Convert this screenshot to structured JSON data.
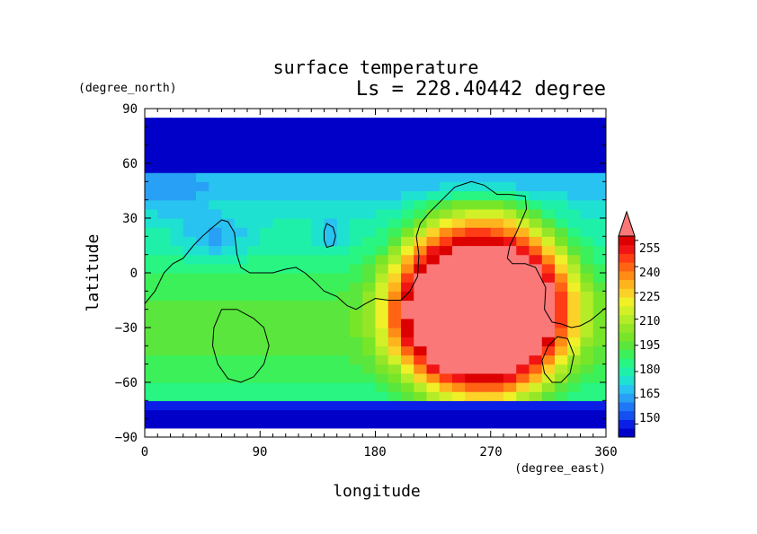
{
  "chart_data": {
    "type": "heatmap",
    "title": "surface temperature",
    "subtitle": "Ls = 228.40442 degree",
    "xlabel": "longitude",
    "ylabel": "latitude",
    "x_unit": "(degree_east)",
    "y_unit": "(degree_north)",
    "xlim": [
      0,
      360
    ],
    "ylim": [
      -90,
      90
    ],
    "x_ticks": [
      "0",
      "90",
      "180",
      "270",
      "360"
    ],
    "y_ticks": [
      "90",
      "60",
      "30",
      "0",
      "−30",
      "−60",
      "−90"
    ],
    "colorbar_ticks": [
      "255",
      "240",
      "225",
      "210",
      "195",
      "180",
      "165",
      "150"
    ],
    "grid": false,
    "colorbar": {
      "levels": [
        145,
        150,
        155,
        160,
        165,
        170,
        175,
        180,
        185,
        190,
        195,
        200,
        205,
        210,
        215,
        220,
        225,
        230,
        235,
        240,
        245,
        250,
        255,
        260
      ],
      "colors": [
        "#0000c8",
        "#0a1ee6",
        "#1450f0",
        "#1e78f5",
        "#28a0f5",
        "#28c3f0",
        "#1ee1d2",
        "#1ef0aa",
        "#28f582",
        "#3cf05a",
        "#5ae63c",
        "#78e628",
        "#96e628",
        "#b4ec28",
        "#d2f028",
        "#f0f028",
        "#fad228",
        "#ffb41e",
        "#ff8c14",
        "#ff6414",
        "#ff3c14",
        "#f01414",
        "#dc0000",
        "#fa7878"
      ],
      "overflow_color": "#fa7878"
    },
    "grid_lon_step": 10,
    "grid_lat_step": 5,
    "lat_range_plotted": [
      -85,
      85
    ],
    "features": [
      {
        "name": "polar cap north",
        "temp": 147
      },
      {
        "name": "polar cap south",
        "temp": 147
      },
      {
        "name": "subsolar warm region center lon",
        "value": 260
      },
      {
        "name": "subsolar warm region center lat",
        "value": -15
      }
    ],
    "coastline": [
      [
        [
          0,
          -17
        ],
        [
          8,
          -10
        ],
        [
          15,
          0
        ],
        [
          22,
          5
        ],
        [
          30,
          8
        ],
        [
          38,
          15
        ],
        [
          45,
          20
        ],
        [
          53,
          25
        ],
        [
          60,
          29
        ],
        [
          65,
          28
        ],
        [
          70,
          22
        ],
        [
          72,
          10
        ],
        [
          75,
          3
        ],
        [
          82,
          0
        ],
        [
          100,
          0
        ],
        [
          110,
          2
        ],
        [
          118,
          3
        ],
        [
          125,
          0
        ],
        [
          133,
          -5
        ],
        [
          140,
          -10
        ],
        [
          150,
          -13
        ],
        [
          158,
          -18
        ],
        [
          165,
          -20
        ],
        [
          172,
          -17
        ],
        [
          180,
          -14
        ],
        [
          190,
          -15
        ],
        [
          200,
          -15
        ],
        [
          207,
          -10
        ],
        [
          213,
          -2
        ],
        [
          214,
          10
        ],
        [
          212,
          20
        ],
        [
          215,
          27
        ],
        [
          222,
          33
        ],
        [
          232,
          40
        ],
        [
          242,
          47
        ],
        [
          255,
          50
        ],
        [
          265,
          48
        ],
        [
          275,
          43
        ],
        [
          285,
          43
        ],
        [
          297,
          42
        ],
        [
          298,
          35
        ],
        [
          290,
          22
        ],
        [
          285,
          15
        ],
        [
          283,
          8
        ],
        [
          287,
          5
        ],
        [
          297,
          5
        ],
        [
          305,
          3
        ],
        [
          313,
          -8
        ],
        [
          312,
          -20
        ],
        [
          318,
          -27
        ],
        [
          325,
          -28
        ],
        [
          333,
          -30
        ],
        [
          340,
          -29
        ],
        [
          348,
          -26
        ],
        [
          355,
          -22
        ],
        [
          360,
          -19
        ]
      ],
      [
        [
          60,
          -20
        ],
        [
          72,
          -20
        ],
        [
          85,
          -25
        ],
        [
          93,
          -30
        ],
        [
          97,
          -40
        ],
        [
          93,
          -50
        ],
        [
          85,
          -57
        ],
        [
          75,
          -60
        ],
        [
          65,
          -58
        ],
        [
          57,
          -50
        ],
        [
          53,
          -40
        ],
        [
          54,
          -30
        ]
      ],
      [
        [
          142,
          27
        ],
        [
          147,
          25
        ],
        [
          149,
          20
        ],
        [
          147,
          15
        ],
        [
          142,
          14
        ],
        [
          140,
          18
        ],
        [
          140,
          23
        ]
      ],
      [
        [
          310,
          -48
        ],
        [
          315,
          -40
        ],
        [
          322,
          -35
        ],
        [
          330,
          -36
        ],
        [
          335,
          -45
        ],
        [
          332,
          -55
        ],
        [
          325,
          -60
        ],
        [
          318,
          -60
        ],
        [
          312,
          -55
        ]
      ]
    ]
  }
}
